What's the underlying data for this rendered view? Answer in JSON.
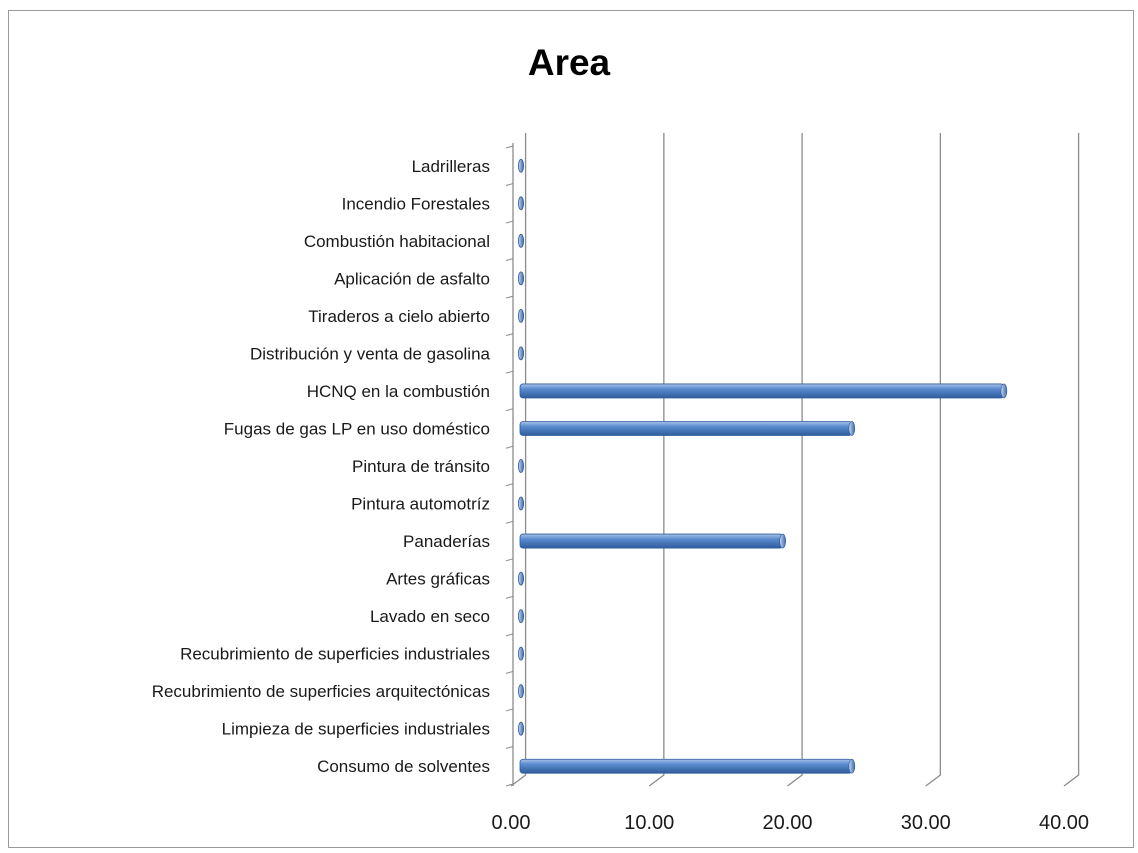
{
  "chart_data": {
    "type": "bar",
    "orientation": "horizontal",
    "title": "Area",
    "categories": [
      "Consumo de solventes",
      "Limpieza de superficies industriales",
      "Recubrimiento de superficies arquitectónicas",
      "Recubrimiento de superficies industriales",
      "Lavado en seco",
      "Artes gráficas",
      "Panaderías",
      "Pintura automotríz",
      "Pintura de tránsito",
      "Fugas de gas LP en uso doméstico",
      "HCNQ en la combustión",
      "Distribución y venta de gasolina",
      "Tiraderos a cielo abierto",
      "Aplicación de asfalto",
      "Combustión habitacional",
      "Incendio Forestales",
      "Ladrilleras"
    ],
    "values": [
      24.0,
      0.0,
      0.0,
      0.0,
      0.0,
      0.0,
      19.0,
      0.0,
      0.0,
      24.0,
      35.0,
      0.0,
      0.0,
      0.0,
      0.0,
      0.0,
      0.0
    ],
    "xlim": [
      0,
      40
    ],
    "xticks": [
      "0.00",
      "10.00",
      "20.00",
      "30.00",
      "40.00"
    ],
    "xtick_values": [
      0,
      10,
      20,
      30,
      40
    ],
    "grid": true,
    "legend": "none",
    "bar_color": "#4f81bd"
  }
}
